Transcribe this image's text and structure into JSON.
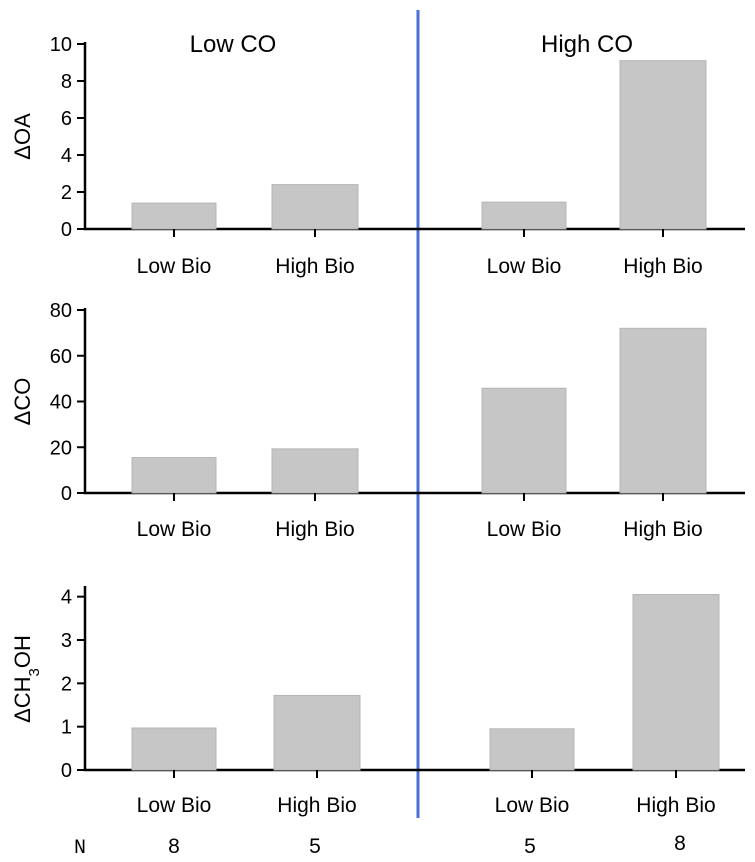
{
  "chart_data": {
    "type": "bar",
    "groups": [
      "Low CO",
      "High CO"
    ],
    "categories": [
      "Low Bio",
      "High Bio",
      "Low Bio",
      "High Bio"
    ],
    "panels": [
      {
        "ylabel": "ΔOA",
        "ylim": [
          0,
          10
        ],
        "ticks": [
          0,
          2,
          4,
          6,
          8,
          10
        ],
        "values": [
          1.4,
          2.4,
          1.45,
          9.1
        ]
      },
      {
        "ylabel": "ΔCO",
        "ylim": [
          0,
          80
        ],
        "ticks": [
          0,
          20,
          40,
          60,
          80
        ],
        "values": [
          15.5,
          19.3,
          45.8,
          72.0
        ]
      },
      {
        "ylabel": "ΔCH3OH",
        "ylabel_parts": [
          "ΔCH",
          "3",
          "OH"
        ],
        "ylim": [
          0,
          4.2
        ],
        "ticks": [
          0,
          1,
          2,
          3,
          4
        ],
        "values": [
          0.97,
          1.72,
          0.95,
          4.05
        ]
      }
    ],
    "n_label": "N",
    "n_values": [
      "8",
      "5",
      "5",
      "8"
    ],
    "bar_color": "#c6c6c6",
    "divider_color": "#4a6fd8",
    "grid": false
  }
}
